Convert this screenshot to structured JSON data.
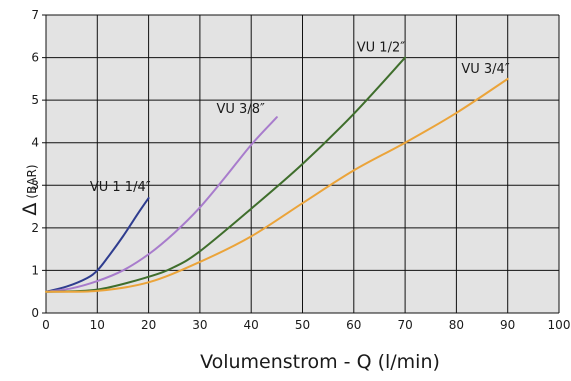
{
  "chart_data": {
    "type": "line",
    "title": "",
    "xlabel": "Volumenstrom - Q (l/min)",
    "ylabel_symbol": "Δ",
    "ylabel_unit": "(BAR)",
    "xlim": [
      0,
      100
    ],
    "ylim": [
      0,
      7
    ],
    "x_ticks": [
      "0",
      "10",
      "20",
      "30",
      "40",
      "50",
      "60",
      "70",
      "80",
      "90",
      "100"
    ],
    "y_ticks": [
      "0",
      "1",
      "2",
      "3",
      "4",
      "5",
      "6",
      "7"
    ],
    "grid": true,
    "plot_background": "#e3e3e3",
    "grid_color": "#111111",
    "series": [
      {
        "name": "VU 1 1/4\"",
        "label": "VU 1 1/4″",
        "color": "#2f3d8f",
        "x": [
          0,
          4,
          8,
          10,
          12,
          15,
          18,
          20
        ],
        "y": [
          0.5,
          0.62,
          0.82,
          1.0,
          1.3,
          1.8,
          2.35,
          2.7
        ]
      },
      {
        "name": "VU 3/8\"",
        "label": "VU 3/8″",
        "color": "#a87ccc",
        "x": [
          0,
          5,
          10,
          15,
          20,
          25,
          30,
          35,
          40,
          45
        ],
        "y": [
          0.5,
          0.58,
          0.75,
          1.0,
          1.38,
          1.88,
          2.48,
          3.2,
          3.95,
          4.6
        ]
      },
      {
        "name": "VU 1/2\"",
        "label": "VU 1/2″",
        "color": "#3f6e2c",
        "x": [
          0,
          10,
          20,
          25,
          30,
          40,
          50,
          60,
          70
        ],
        "y": [
          0.5,
          0.55,
          0.85,
          1.08,
          1.45,
          2.45,
          3.5,
          4.68,
          6.0
        ]
      },
      {
        "name": "VU 3/4\"",
        "label": "VU 3/4″",
        "color": "#eba43a",
        "x": [
          0,
          10,
          20,
          30,
          40,
          50,
          60,
          70,
          80,
          90
        ],
        "y": [
          0.5,
          0.52,
          0.72,
          1.2,
          1.8,
          2.58,
          3.35,
          4.0,
          4.7,
          5.5
        ]
      }
    ]
  }
}
